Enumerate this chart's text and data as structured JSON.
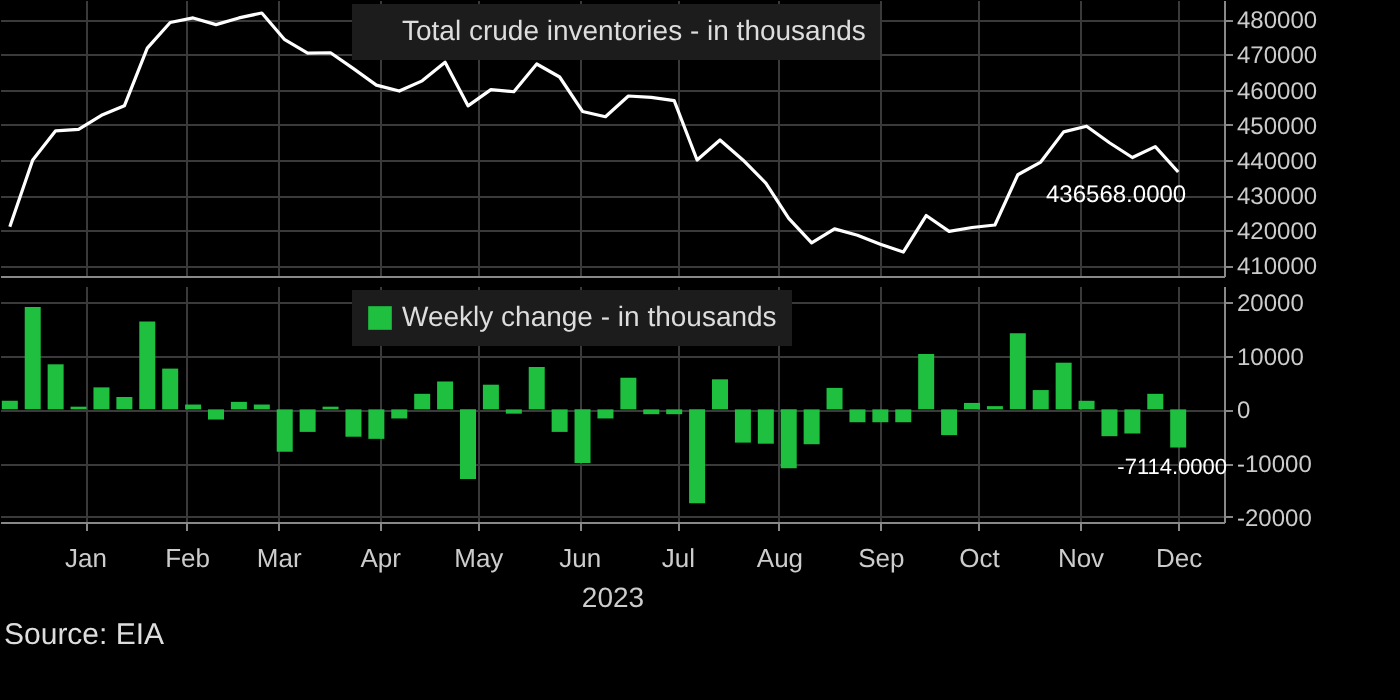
{
  "chart_data": [
    {
      "type": "line",
      "xlim": [
        "2022-12-06",
        "2023-12-15"
      ],
      "ylim": [
        407000,
        485500
      ],
      "yticks": [
        410000,
        420000,
        430000,
        440000,
        450000,
        460000,
        470000,
        480000
      ],
      "tick_labels": "y",
      "grid": true,
      "legend": "top",
      "xticks": [
        {
          "value": "2023-01-01",
          "label": null
        },
        {
          "value": "2023-02-01",
          "label": null
        },
        {
          "value": "2023-03-01",
          "label": null
        },
        {
          "value": "2023-04-01",
          "label": null
        },
        {
          "value": "2023-05-01",
          "label": null
        },
        {
          "value": "2023-06-01",
          "label": null
        },
        {
          "value": "2023-07-01",
          "label": null
        },
        {
          "value": "2023-08-01",
          "label": null
        },
        {
          "value": "2023-09-01",
          "label": null
        },
        {
          "value": "2023-10-01",
          "label": null
        },
        {
          "value": "2023-11-01",
          "label": null
        },
        {
          "value": "2023-12-01",
          "label": null
        }
      ],
      "x": [
        "2022-12-09",
        "2022-12-16",
        "2022-12-23",
        "2022-12-30",
        "2023-01-06",
        "2023-01-13",
        "2023-01-20",
        "2023-01-27",
        "2023-02-03",
        "2023-02-10",
        "2023-02-17",
        "2023-02-24",
        "2023-03-03",
        "2023-03-10",
        "2023-03-17",
        "2023-03-24",
        "2023-03-31",
        "2023-04-07",
        "2023-04-14",
        "2023-04-21",
        "2023-04-28",
        "2023-05-05",
        "2023-05-12",
        "2023-05-19",
        "2023-05-26",
        "2023-06-02",
        "2023-06-09",
        "2023-06-16",
        "2023-06-23",
        "2023-06-30",
        "2023-07-07",
        "2023-07-14",
        "2023-07-21",
        "2023-07-28",
        "2023-08-04",
        "2023-08-11",
        "2023-08-18",
        "2023-08-25",
        "2023-09-01",
        "2023-09-08",
        "2023-09-15",
        "2023-09-22",
        "2023-09-29",
        "2023-10-06",
        "2023-10-13",
        "2023-10-20",
        "2023-10-27",
        "2023-11-03",
        "2023-11-10",
        "2023-11-17",
        "2023-11-24",
        "2023-12-01"
      ],
      "series": [
        {
          "name": "Total crude inventories - in thousands",
          "color": "#ffffff",
          "values": [
            421000,
            440000,
            448300,
            448700,
            452700,
            455400,
            471800,
            479100,
            480400,
            478500,
            480400,
            481800,
            474200,
            470400,
            470500,
            466000,
            461300,
            459600,
            462500,
            467800,
            455400,
            460000,
            459400,
            467300,
            463600,
            453800,
            452300,
            458200,
            457800,
            456900,
            440000,
            445700,
            440000,
            433400,
            423400,
            416400,
            420400,
            418600,
            416000,
            413800,
            424200,
            419700,
            420800,
            421500,
            435800,
            439400,
            448000,
            449600,
            444900,
            440700,
            443800,
            436568
          ],
          "value_labels": [
            null,
            null,
            null,
            null,
            null,
            null,
            null,
            null,
            null,
            null,
            null,
            null,
            null,
            null,
            null,
            null,
            null,
            null,
            null,
            null,
            null,
            null,
            null,
            null,
            null,
            null,
            null,
            null,
            null,
            null,
            null,
            null,
            null,
            null,
            null,
            null,
            null,
            null,
            null,
            null,
            null,
            null,
            null,
            null,
            null,
            null,
            null,
            null,
            null,
            null,
            null,
            "436568.0000"
          ]
        }
      ]
    },
    {
      "type": "bar",
      "xlim": [
        "2022-12-06",
        "2023-12-15"
      ],
      "ylim": [
        -21000,
        23000
      ],
      "yticks": [
        -20000,
        -10000,
        0,
        10000,
        20000
      ],
      "grid": true,
      "legend": "top",
      "xlabel": "2023",
      "xticks": [
        {
          "value": "2023-01-01",
          "label": "Jan"
        },
        {
          "value": "2023-02-01",
          "label": "Feb"
        },
        {
          "value": "2023-03-01",
          "label": "Mar"
        },
        {
          "value": "2023-04-01",
          "label": "Apr"
        },
        {
          "value": "2023-05-01",
          "label": "May"
        },
        {
          "value": "2023-06-01",
          "label": "Jun"
        },
        {
          "value": "2023-07-01",
          "label": "Jul"
        },
        {
          "value": "2023-08-01",
          "label": "Aug"
        },
        {
          "value": "2023-09-01",
          "label": "Sep"
        },
        {
          "value": "2023-10-01",
          "label": "Oct"
        },
        {
          "value": "2023-11-01",
          "label": "Nov"
        },
        {
          "value": "2023-12-01",
          "label": "Dec"
        }
      ],
      "x": [
        "2022-12-09",
        "2022-12-16",
        "2022-12-23",
        "2022-12-30",
        "2023-01-06",
        "2023-01-13",
        "2023-01-20",
        "2023-01-27",
        "2023-02-03",
        "2023-02-10",
        "2023-02-17",
        "2023-02-24",
        "2023-03-03",
        "2023-03-10",
        "2023-03-17",
        "2023-03-24",
        "2023-03-31",
        "2023-04-07",
        "2023-04-14",
        "2023-04-21",
        "2023-04-28",
        "2023-05-05",
        "2023-05-12",
        "2023-05-19",
        "2023-05-26",
        "2023-06-02",
        "2023-06-09",
        "2023-06-16",
        "2023-06-23",
        "2023-06-30",
        "2023-07-07",
        "2023-07-14",
        "2023-07-21",
        "2023-07-28",
        "2023-08-04",
        "2023-08-11",
        "2023-08-18",
        "2023-08-25",
        "2023-09-01",
        "2023-09-08",
        "2023-09-15",
        "2023-09-22",
        "2023-09-29",
        "2023-10-06",
        "2023-10-13",
        "2023-10-20",
        "2023-10-27",
        "2023-11-03",
        "2023-11-10",
        "2023-11-17",
        "2023-11-24",
        "2023-12-01"
      ],
      "series": [
        {
          "name": "Weekly change - in thousands",
          "color": "#1fbf3f",
          "values": [
            1600,
            19100,
            8400,
            500,
            4100,
            2300,
            16400,
            7600,
            900,
            -1900,
            1400,
            900,
            -7900,
            -4200,
            500,
            -5100,
            -5500,
            -1700,
            2900,
            5200,
            -13000,
            4600,
            -800,
            7900,
            -4200,
            -10000,
            -1700,
            5900,
            -900,
            -900,
            -17500,
            5600,
            -6200,
            -6400,
            -11000,
            -6500,
            4000,
            -2400,
            -2400,
            -2400,
            10300,
            -4800,
            1200,
            600,
            14200,
            3600,
            8700,
            1600,
            -5000,
            -4500,
            2900,
            -7114
          ],
          "value_labels": [
            null,
            null,
            null,
            null,
            null,
            null,
            null,
            null,
            null,
            null,
            null,
            null,
            null,
            null,
            null,
            null,
            null,
            null,
            null,
            null,
            null,
            null,
            null,
            null,
            null,
            null,
            null,
            null,
            null,
            null,
            null,
            null,
            null,
            null,
            null,
            null,
            null,
            null,
            null,
            null,
            null,
            null,
            null,
            null,
            null,
            null,
            null,
            null,
            null,
            null,
            null,
            "-7114.0000"
          ]
        }
      ],
      "annotations": [
        "Source: EIA"
      ]
    }
  ]
}
